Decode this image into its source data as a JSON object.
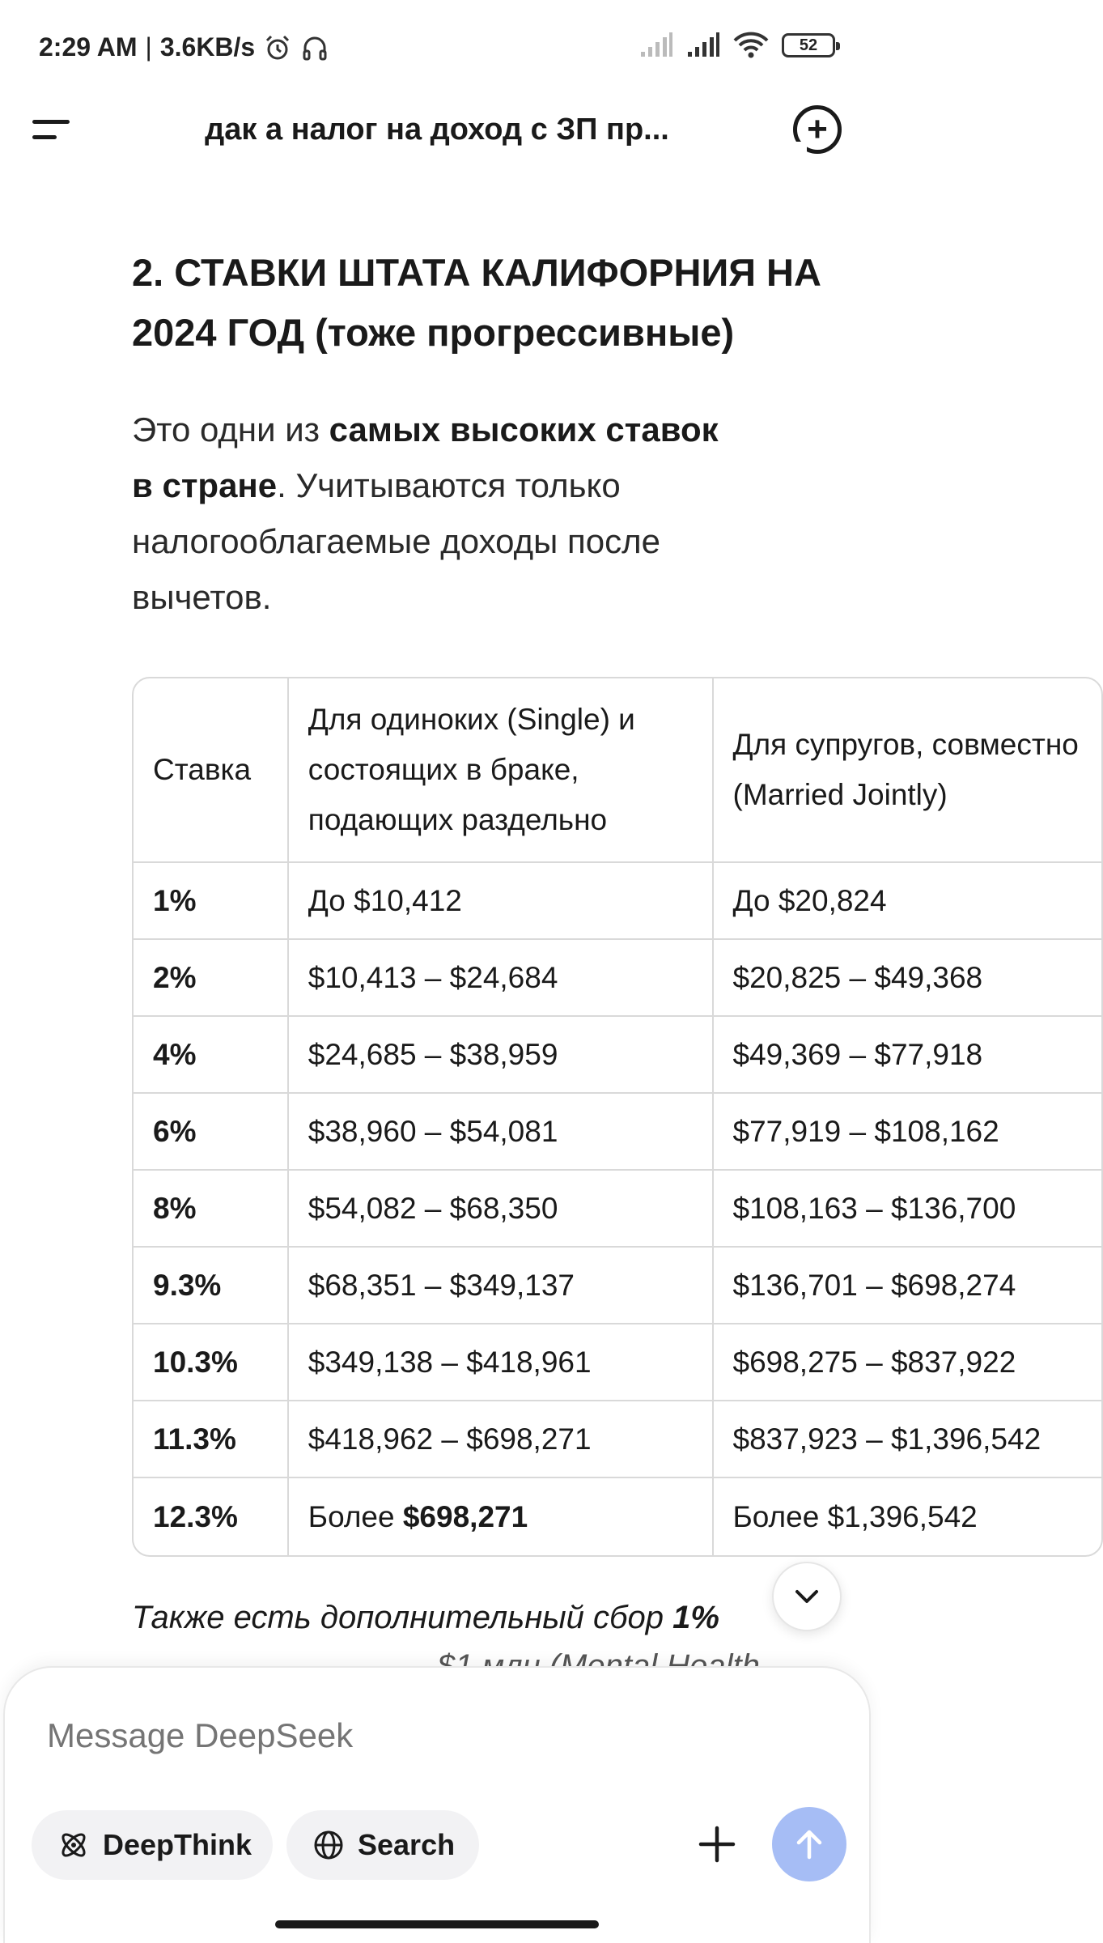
{
  "status_bar": {
    "time": "2:29 AM",
    "separator": "|",
    "network_speed": "3.6KB/s",
    "alarm_icon": "alarm-icon",
    "headphones_icon": "headphones-icon",
    "signal_icons": [
      "signal-weak-icon",
      "signal-icon"
    ],
    "wifi_icon": "wifi-icon",
    "battery_level": "52"
  },
  "header": {
    "menu_icon": "menu-icon",
    "title": "дак а налог на доход с ЗП пр...",
    "new_chat_icon": "new-chat-icon"
  },
  "message": {
    "heading": "2. СТАВКИ ШТАТА КАЛИФОРНИЯ НА 2024 ГОД (тоже прогрессивные)",
    "intro_plain_1": "Это одни из ",
    "intro_bold": "самых высоких ставок в стране",
    "intro_plain_2": ". Учитываются только налогооблагаемые доходы после вычетов.",
    "table": {
      "headers": [
        "Ставка",
        "Для одиноких (Single) и состоящих в браке, подающих раздельно",
        "Для супругов, совместно (Married Jointly)"
      ],
      "rows": [
        {
          "rate": "1%",
          "single": "До $10,412",
          "joint": "До $20,824"
        },
        {
          "rate": "2%",
          "single": "$10,413 – $24,684",
          "joint": "$20,825 – $49,368"
        },
        {
          "rate": "4%",
          "single": "$24,685 – $38,959",
          "joint": "$49,369 – $77,918"
        },
        {
          "rate": "6%",
          "single": "$38,960 – $54,081",
          "joint": "$77,919 – $108,162"
        },
        {
          "rate": "8%",
          "single": "$54,082 – $68,350",
          "joint": "$108,163 – $136,700"
        },
        {
          "rate": "9.3%",
          "single": "$68,351 – $349,137",
          "joint": "$136,701 – $698,274"
        },
        {
          "rate": "10.3%",
          "single": "$349,138 – $418,961",
          "joint": "$698,275 – $837,922"
        },
        {
          "rate": "11.3%",
          "single": "$418,962 – $698,271",
          "joint": "$837,923 – $1,396,542"
        },
        {
          "rate": "12.3%",
          "single_prefix": "Более ",
          "single_bold": "$698,271",
          "joint": "Более $1,396,542"
        }
      ]
    },
    "note_plain": "Также есть дополнительный сбор ",
    "note_bold": "1%",
    "note_cut": "$1 млн (Mental Health"
  },
  "scroll_down_icon": "chevron-down-icon",
  "composer": {
    "placeholder": "Message DeepSeek",
    "deepthink_label": "DeepThink",
    "deepthink_icon": "atom-icon",
    "search_label": "Search",
    "search_icon": "globe-icon",
    "attach_icon": "plus-icon",
    "send_icon": "arrow-up-icon"
  }
}
